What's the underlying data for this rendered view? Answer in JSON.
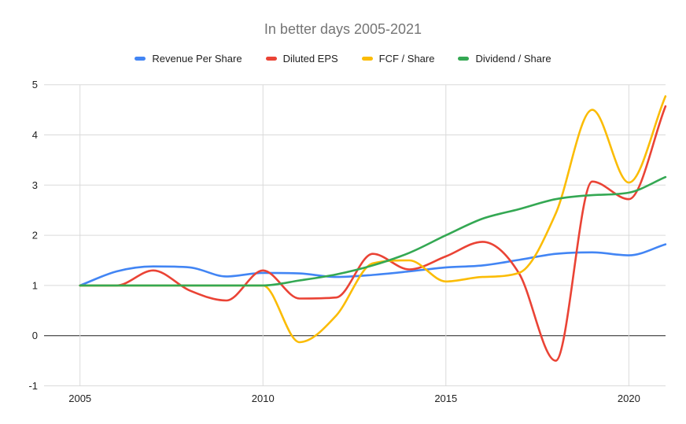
{
  "title": "In better days 2005-2021",
  "chart_data": {
    "type": "line",
    "smooth": true,
    "x": [
      2005,
      2006,
      2007,
      2008,
      2009,
      2010,
      2011,
      2012,
      2013,
      2014,
      2015,
      2016,
      2017,
      2018,
      2019,
      2020,
      2021
    ],
    "series": [
      {
        "name": "Revenue Per Share",
        "color": "#4285f4",
        "values": [
          1.0,
          1.28,
          1.38,
          1.36,
          1.18,
          1.25,
          1.24,
          1.17,
          1.21,
          1.28,
          1.36,
          1.4,
          1.51,
          1.63,
          1.66,
          1.6,
          1.82
        ]
      },
      {
        "name": "Diluted EPS",
        "color": "#ea4335",
        "values": [
          1.0,
          1.0,
          1.3,
          0.9,
          0.7,
          1.3,
          0.74,
          0.76,
          1.63,
          1.32,
          1.58,
          1.87,
          1.24,
          -0.5,
          3.07,
          2.72,
          4.57
        ]
      },
      {
        "name": "FCF / Share",
        "color": "#fbbc04",
        "values": [
          1.0,
          1.0,
          1.0,
          1.0,
          1.0,
          1.0,
          -0.13,
          0.4,
          1.44,
          1.5,
          1.08,
          1.17,
          1.25,
          2.43,
          4.5,
          3.05,
          4.77
        ]
      },
      {
        "name": "Dividend / Share",
        "color": "#34a853",
        "values": [
          1.0,
          1.0,
          1.0,
          1.0,
          1.0,
          1.0,
          1.1,
          1.22,
          1.4,
          1.65,
          2.0,
          2.33,
          2.52,
          2.72,
          2.8,
          2.85,
          3.16
        ]
      }
    ],
    "title": "In better days 2005-2021",
    "xlabel": "",
    "ylabel": "",
    "ylim": [
      -1,
      5
    ],
    "y_ticks": [
      -1,
      0,
      1,
      2,
      3,
      4,
      5
    ],
    "x_ticks": [
      2005,
      2010,
      2015,
      2020
    ],
    "grid": true,
    "legend_position": "top"
  },
  "colors": {
    "background": "#ffffff",
    "title_text": "#757575",
    "axis_text": "#222222",
    "gridline": "#dadada",
    "zero_line": "#1f1f1f"
  }
}
